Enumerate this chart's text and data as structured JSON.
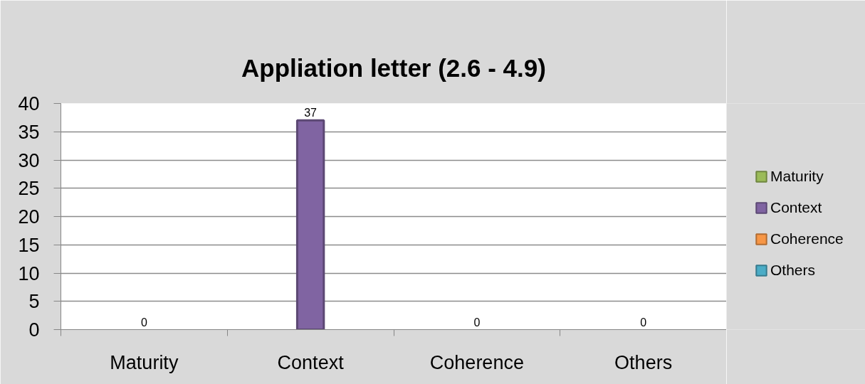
{
  "chart_data": {
    "type": "bar",
    "title": "Appliation letter (2.6 - 4.9)",
    "categories": [
      "Maturity",
      "Context",
      "Coherence",
      "Others"
    ],
    "series": [
      {
        "name": "Maturity",
        "color": "#9bbb59",
        "values": [
          0,
          null,
          null,
          null
        ]
      },
      {
        "name": "Context",
        "color": "#8064a2",
        "values": [
          null,
          37,
          null,
          null
        ]
      },
      {
        "name": "Coherence",
        "color": "#f79646",
        "values": [
          null,
          null,
          0,
          null
        ]
      },
      {
        "name": "Others",
        "color": "#4bacc6",
        "values": [
          null,
          null,
          null,
          0
        ]
      }
    ],
    "stacked": true,
    "ylim": [
      0,
      40
    ],
    "yticks": [
      0,
      5,
      10,
      15,
      20,
      25,
      30,
      35,
      40
    ],
    "grid": "y",
    "legend": "right",
    "data_labels": true
  }
}
